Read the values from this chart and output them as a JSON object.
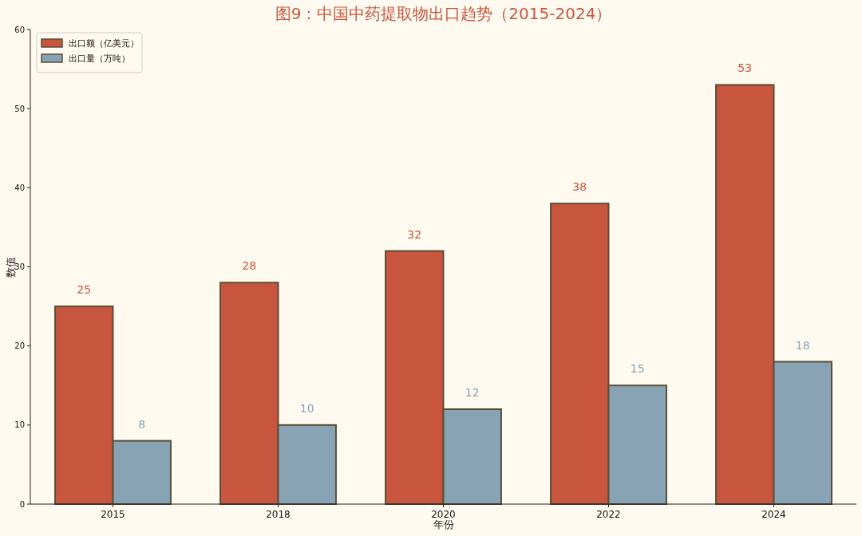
{
  "chart_data": {
    "type": "bar",
    "title": "图9：中国中药提取物出口趋势（2015-2024）",
    "xlabel": "年份",
    "ylabel": "数值",
    "categories": [
      "2015",
      "2018",
      "2020",
      "2022",
      "2024"
    ],
    "series": [
      {
        "name": "出口额（亿美元）",
        "color": "#c8553d",
        "values": [
          25,
          28,
          32,
          38,
          53
        ]
      },
      {
        "name": "出口量（万吨）",
        "color": "#88a4b4",
        "values": [
          8,
          10,
          12,
          15,
          18
        ]
      }
    ],
    "ylim": [
      0,
      60
    ],
    "yticks": [
      0,
      10,
      20,
      30,
      40,
      50,
      60
    ],
    "data_labels": true,
    "legend": "top left",
    "grid": false
  }
}
